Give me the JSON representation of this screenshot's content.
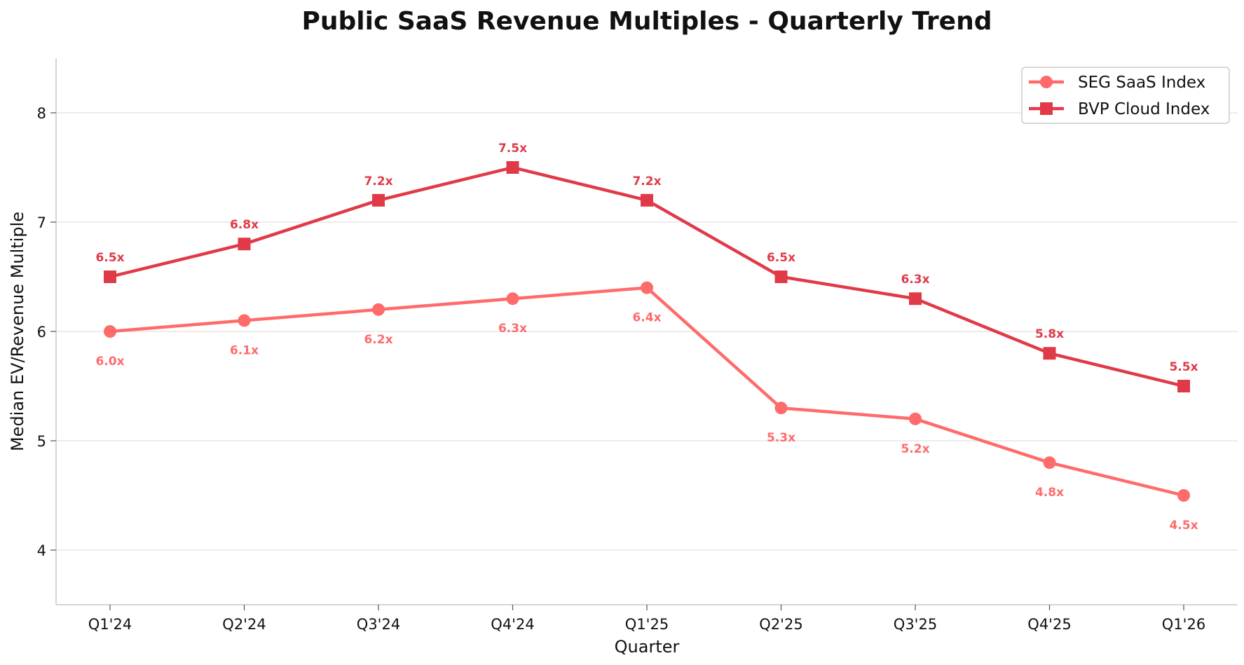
{
  "chart_data": {
    "type": "line",
    "title": "Public SaaS Revenue Multiples - Quarterly Trend",
    "xlabel": "Quarter",
    "ylabel": "Median EV/Revenue Multiple",
    "categories": [
      "Q1'24",
      "Q2'24",
      "Q3'24",
      "Q4'24",
      "Q1'25",
      "Q2'25",
      "Q3'25",
      "Q4'25",
      "Q1'26"
    ],
    "ylim": [
      3.5,
      8.5
    ],
    "yticks": [
      4,
      5,
      6,
      7,
      8
    ],
    "grid": "horizontal",
    "legend_position": "top-right",
    "series": [
      {
        "name": "SEG SaaS Index",
        "marker": "circle",
        "color": "#ff6b6b",
        "values": [
          6.0,
          6.1,
          6.2,
          6.3,
          6.4,
          5.3,
          5.2,
          4.8,
          4.5
        ],
        "labels": [
          "6.0x",
          "6.1x",
          "6.2x",
          "6.3x",
          "6.4x",
          "5.3x",
          "5.2x",
          "4.8x",
          "4.5x"
        ],
        "label_position": "below"
      },
      {
        "name": "BVP Cloud Index",
        "marker": "square",
        "color": "#e03a48",
        "values": [
          6.5,
          6.8,
          7.2,
          7.5,
          7.2,
          6.5,
          6.3,
          5.8,
          5.5
        ],
        "labels": [
          "6.5x",
          "6.8x",
          "7.2x",
          "7.5x",
          "7.2x",
          "6.5x",
          "6.3x",
          "5.8x",
          "5.5x"
        ],
        "label_position": "above"
      }
    ]
  }
}
